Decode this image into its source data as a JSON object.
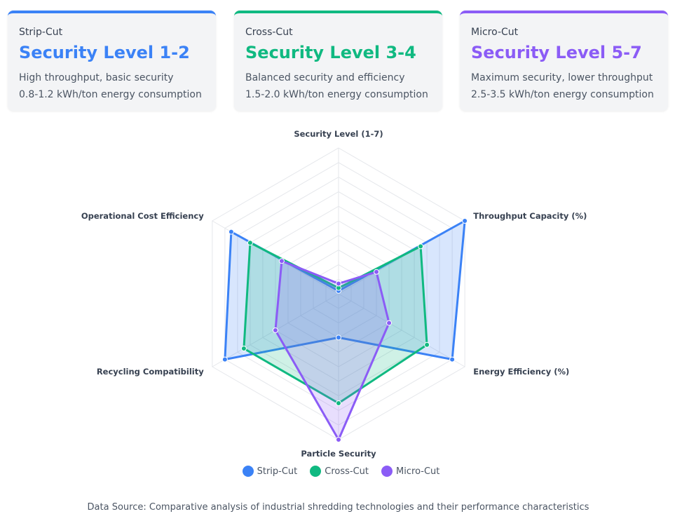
{
  "cards": [
    {
      "name": "Strip-Cut",
      "level": "Security Level 1-2",
      "desc1": "High throughput, basic security",
      "desc2": "0.8-1.2 kWh/ton energy consumption",
      "color": "#3b82f6"
    },
    {
      "name": "Cross-Cut",
      "level": "Security Level 3-4",
      "desc1": "Balanced security and efficiency",
      "desc2": "1.5-2.0 kWh/ton energy consumption",
      "color": "#10b981"
    },
    {
      "name": "Micro-Cut",
      "level": "Security Level 5-7",
      "desc1": "Maximum security, lower throughput",
      "desc2": "2.5-3.5 kWh/ton energy consumption",
      "color": "#8b5cf6"
    }
  ],
  "chart_data": {
    "type": "radar",
    "axes": [
      "Security Level (1-7)",
      "Throughput Capacity (%)",
      "Energy Efficiency (%)",
      "Particle Security",
      "Recycling Compatibility",
      "Operational Cost Efficiency"
    ],
    "range": [
      0,
      100
    ],
    "grid_rings": 10,
    "series": [
      {
        "name": "Strip-Cut",
        "color": "#3b82f6",
        "values": [
          2,
          100,
          90,
          30,
          90,
          85
        ]
      },
      {
        "name": "Cross-Cut",
        "color": "#10b981",
        "values": [
          4,
          65,
          70,
          75,
          75,
          70
        ]
      },
      {
        "name": "Micro-Cut",
        "color": "#8b5cf6",
        "values": [
          7,
          30,
          40,
          100,
          50,
          45
        ]
      }
    ],
    "legend_position": "bottom"
  },
  "source": "Data Source: Comparative analysis of industrial shredding technologies and their performance characteristics"
}
